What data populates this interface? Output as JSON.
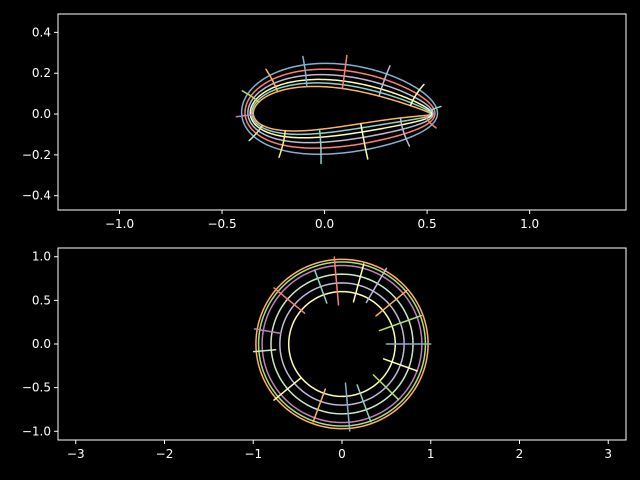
{
  "chart_data": [
    {
      "type": "line",
      "name": "airfoil-grid",
      "title": "",
      "xlabel": "",
      "ylabel": "",
      "xlim": [
        -1.3,
        1.47
      ],
      "ylim": [
        -0.47,
        0.49
      ],
      "xticks": [
        -1.0,
        -0.5,
        0.0,
        0.5,
        1.0
      ],
      "xtick_labels": [
        "−1.0",
        "−0.5",
        "0.0",
        "0.5",
        "1.0"
      ],
      "yticks": [
        -0.4,
        -0.2,
        0.0,
        0.2,
        0.4
      ],
      "ytick_labels": [
        "−0.4",
        "−0.2",
        "0.0",
        "0.2",
        "0.4"
      ],
      "grid": false,
      "mapping": {
        "description_free": true,
        "center": [
          0.09,
          0.0
        ],
        "radius": 0.495,
        "ring_radii_factors": [
          1.0,
          1.05,
          1.1,
          1.17,
          1.25,
          1.34
        ],
        "ring_colors": [
          "#fdb462",
          "#8dd3c7",
          "#ffffb3",
          "#bebada",
          "#fb8072",
          "#80b1d3",
          "#fdb462"
        ],
        "ray_count": 14,
        "ray_radius_range": [
          1.0,
          1.48
        ],
        "ray_colors": [
          "#8dd3c7",
          "#feffb3",
          "#bfbbd9",
          "#fa8174",
          "#81b1d2",
          "#fdb462",
          "#b3de69",
          "#bc82bd",
          "#ccebc4",
          "#ffed6f"
        ]
      }
    },
    {
      "type": "line",
      "name": "circle-grid",
      "title": "",
      "xlabel": "",
      "ylabel": "",
      "xlim": [
        -3.2,
        3.2
      ],
      "ylim": [
        -1.1,
        1.1
      ],
      "xticks": [
        -3,
        -2,
        -1,
        0,
        1,
        2,
        3
      ],
      "xtick_labels": [
        "−3",
        "−2",
        "−1",
        "0",
        "1",
        "2",
        "3"
      ],
      "yticks": [
        -1.0,
        -0.5,
        0.0,
        0.5,
        1.0
      ],
      "ytick_labels": [
        "−1.0",
        "−0.5",
        "0.0",
        "0.5",
        "1.0"
      ],
      "grid": false,
      "rings": [
        {
          "radius": 0.6,
          "color": "#ffffb3"
        },
        {
          "radius": 0.7,
          "color": "#bebada"
        },
        {
          "radius": 0.8,
          "color": "#ccebc4"
        },
        {
          "radius": 0.9,
          "color": "#bc82bd"
        },
        {
          "radius": 0.94,
          "color": "#b3de69"
        },
        {
          "radius": 0.97,
          "color": "#fdb462"
        }
      ],
      "rays": [
        {
          "angle_deg": 0,
          "r": [
            0.5,
            1.0
          ],
          "color": "#80b1d3"
        },
        {
          "angle_deg": 20,
          "r": [
            0.45,
            0.95
          ],
          "color": "#b3de69"
        },
        {
          "angle_deg": 40,
          "r": [
            0.5,
            0.95
          ],
          "color": "#fdb462"
        },
        {
          "angle_deg": 60,
          "r": [
            0.55,
            1.0
          ],
          "color": "#bebada"
        },
        {
          "angle_deg": 75,
          "r": [
            0.5,
            0.95
          ],
          "color": "#ffffb3"
        },
        {
          "angle_deg": 95,
          "r": [
            0.45,
            1.0
          ],
          "color": "#fb8072"
        },
        {
          "angle_deg": 110,
          "r": [
            0.5,
            0.9
          ],
          "color": "#8dd3c7"
        },
        {
          "angle_deg": 140,
          "r": [
            0.55,
            1.0
          ],
          "color": "#fb8072"
        },
        {
          "angle_deg": 170,
          "r": [
            0.7,
            1.0
          ],
          "color": "#bc82bd"
        },
        {
          "angle_deg": 185,
          "r": [
            0.75,
            1.0
          ],
          "color": "#ccebc4"
        },
        {
          "angle_deg": 220,
          "r": [
            0.6,
            1.0
          ],
          "color": "#ffffb3"
        },
        {
          "angle_deg": 250,
          "r": [
            0.55,
            0.95
          ],
          "color": "#fdb462"
        },
        {
          "angle_deg": 275,
          "r": [
            0.45,
            1.0
          ],
          "color": "#80b1d3"
        },
        {
          "angle_deg": 290,
          "r": [
            0.5,
            0.95
          ],
          "color": "#8dd3c7"
        },
        {
          "angle_deg": 315,
          "r": [
            0.5,
            0.9
          ],
          "color": "#b3de69"
        },
        {
          "angle_deg": 340,
          "r": [
            0.5,
            0.9
          ],
          "color": "#ffffb3"
        }
      ]
    }
  ]
}
